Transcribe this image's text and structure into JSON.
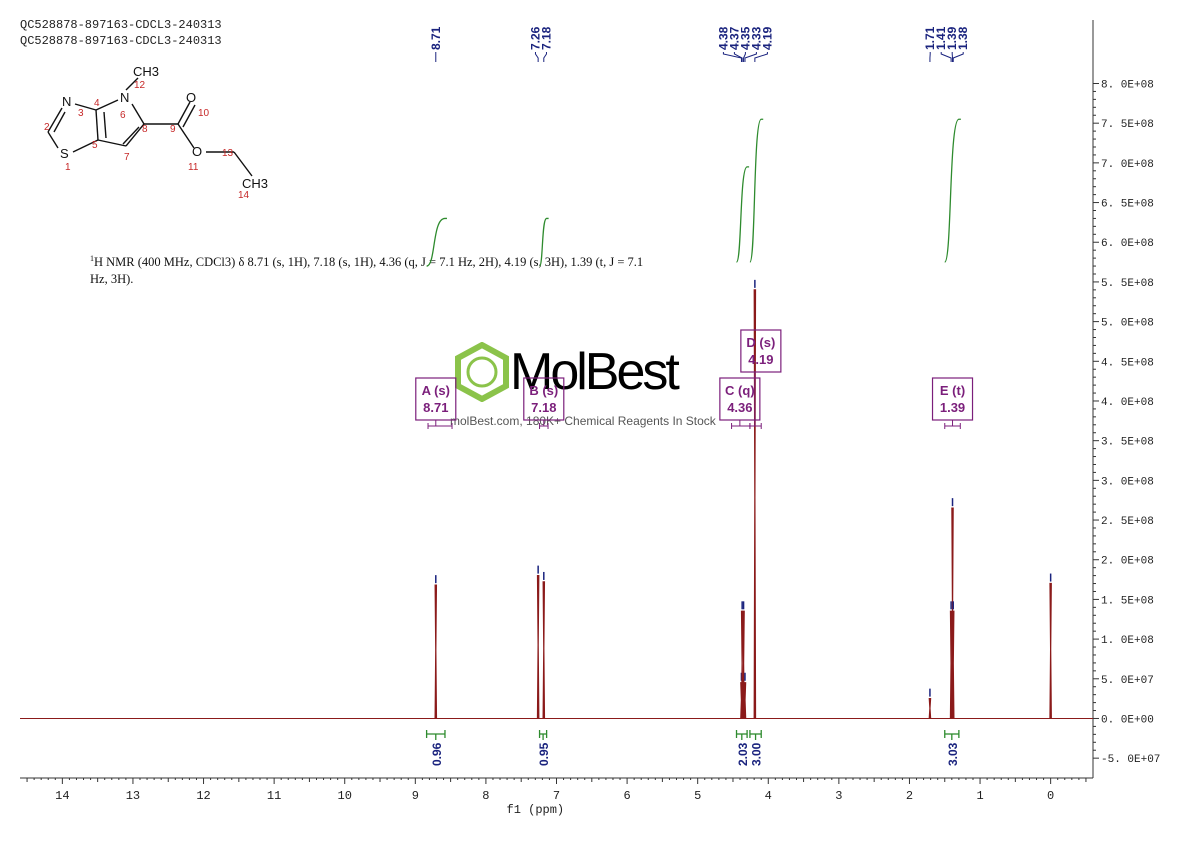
{
  "header": {
    "sample_line_1": "QC528878-897163-CDCL3-240313",
    "sample_line_2": "QC528878-897163-CDCL3-240313"
  },
  "description": {
    "nucleus_sup": "1",
    "text": "H NMR (400 MHz, CDCl3) δ 8.71 (s, 1H), 7.18 (s, 1H), 4.36 (q, J = 7.1 Hz, 2H), 4.19 (s, 3H), 1.39 (t, J = 7.1 Hz, 3H)."
  },
  "structure": {
    "atoms": [
      "N",
      "N",
      "S",
      "O",
      "O",
      "CH3",
      "CH3"
    ],
    "numbers": [
      "1",
      "2",
      "3",
      "4",
      "5",
      "6",
      "7",
      "8",
      "9",
      "10",
      "11",
      "12",
      "13",
      "14"
    ]
  },
  "watermark": {
    "logo_text": "MolBest",
    "tagline": "molBest.com, 180K+ Chemical Reagents In Stock"
  },
  "colors": {
    "spectrum": "#8b1a1a",
    "integral": "#2e8b2e",
    "peak_label": "#1a237e",
    "multiplet_label": "#7b1f7b",
    "axis": "#333333",
    "logo": "#8bc34a"
  },
  "chart_data": {
    "type": "line",
    "title": "",
    "xlabel": "f1 (ppm)",
    "ylabel": "",
    "xlim": [
      14.6,
      -0.6
    ],
    "ylim": [
      -75000000,
      880000000
    ],
    "x_ticks": [
      14,
      13,
      12,
      11,
      10,
      9,
      8,
      7,
      6,
      5,
      4,
      3,
      2,
      1,
      0
    ],
    "y_ticks": [
      -50000000,
      0,
      50000000,
      100000000,
      150000000,
      200000000,
      250000000,
      300000000,
      350000000,
      400000000,
      450000000,
      500000000,
      550000000,
      600000000,
      650000000,
      700000000,
      750000000,
      800000000
    ],
    "y_tick_labels": [
      "-5. 0E+07",
      "0. 0E+00",
      "5. 0E+07",
      "1. 0E+08",
      "1. 5E+08",
      "2. 0E+08",
      "2. 5E+08",
      "3. 0E+08",
      "3. 5E+08",
      "4. 0E+08",
      "4. 5E+08",
      "5. 0E+08",
      "5. 5E+08",
      "6. 0E+08",
      "6. 5E+08",
      "7. 0E+08",
      "7. 5E+08",
      "8. 0E+08"
    ],
    "peaks": [
      {
        "ppm": 8.71,
        "height": 168000000
      },
      {
        "ppm": 7.26,
        "height": 180000000
      },
      {
        "ppm": 7.18,
        "height": 172000000
      },
      {
        "ppm": 4.38,
        "height": 45000000
      },
      {
        "ppm": 4.37,
        "height": 135000000
      },
      {
        "ppm": 4.35,
        "height": 135000000
      },
      {
        "ppm": 4.33,
        "height": 45000000
      },
      {
        "ppm": 4.19,
        "height": 540000000
      },
      {
        "ppm": 1.71,
        "height": 25000000
      },
      {
        "ppm": 1.41,
        "height": 135000000
      },
      {
        "ppm": 1.39,
        "height": 265000000
      },
      {
        "ppm": 1.38,
        "height": 135000000
      },
      {
        "ppm": 0.0,
        "height": 170000000
      }
    ],
    "peak_labels": [
      {
        "group": [
          "8.71"
        ],
        "ppm": [
          8.71
        ]
      },
      {
        "group": [
          "7.26",
          "7.18"
        ],
        "ppm": [
          7.26,
          7.18
        ]
      },
      {
        "group": [
          "4.38",
          "4.37",
          "4.35",
          "4.33",
          "4.19"
        ],
        "ppm": [
          4.38,
          4.37,
          4.35,
          4.33,
          4.19
        ]
      },
      {
        "group": [
          "1.71",
          "1.41",
          "1.39",
          "1.38"
        ],
        "ppm": [
          1.71,
          1.41,
          1.39,
          1.38
        ]
      }
    ],
    "multiplets": [
      {
        "label": "A (s)",
        "shift": "8.71",
        "ppm": 8.71,
        "range": [
          8.82,
          8.48
        ]
      },
      {
        "label": "B (s)",
        "shift": "7.18",
        "ppm": 7.18,
        "range": [
          7.24,
          7.12
        ]
      },
      {
        "label": "C (q)",
        "shift": "4.36",
        "ppm": 4.36,
        "range": [
          4.52,
          4.26
        ]
      },
      {
        "label": "D (s)",
        "shift": "4.19",
        "ppm": 4.19,
        "range": [
          4.26,
          4.1
        ]
      },
      {
        "label": "E (t)",
        "shift": "1.39",
        "ppm": 1.39,
        "range": [
          1.5,
          1.28
        ]
      }
    ],
    "integrals": [
      {
        "value": "0.96",
        "ppm": 8.71,
        "range": [
          8.84,
          8.58
        ],
        "rise": [
          570000000,
          630000000
        ]
      },
      {
        "value": "0.95",
        "ppm": 7.18,
        "range": [
          7.24,
          7.14
        ],
        "rise": [
          570000000,
          630000000
        ]
      },
      {
        "value": "2.03",
        "ppm": 4.36,
        "range": [
          4.45,
          4.3
        ],
        "rise": [
          575000000,
          695000000
        ]
      },
      {
        "value": "3.00",
        "ppm": 4.19,
        "range": [
          4.26,
          4.1
        ],
        "rise": [
          575000000,
          755000000
        ]
      },
      {
        "value": "3.03",
        "ppm": 1.39,
        "range": [
          1.5,
          1.3
        ],
        "rise": [
          575000000,
          755000000
        ]
      }
    ]
  }
}
